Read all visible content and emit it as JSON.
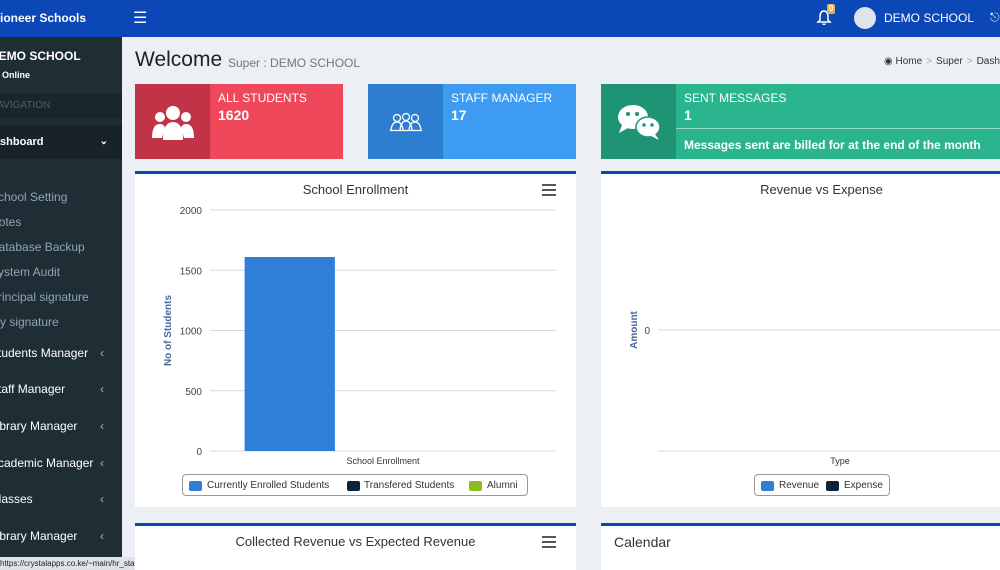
{
  "topbar": {
    "brand": "Pioneer Schools",
    "notification_count": "0",
    "user_name": "DEMO SCHOOL"
  },
  "sidebar": {
    "school_name": "DEMO SCHOOL",
    "status": "Online",
    "nav_header": "NAVIGATION",
    "active_item": "Dashboard",
    "sub_items": [
      "School Setting",
      "Notes",
      "Database Backup",
      "System Audit",
      "Principal signature",
      "My signature"
    ],
    "items": [
      "Students Manager",
      "Staff Manager",
      "Library Manager",
      "Academic Manager",
      "Classes",
      "Library Manager"
    ]
  },
  "status_bar": "https://crystalapps.co.ke/~main/hr_stafflist.php",
  "header": {
    "welcome": "Welcome",
    "sub": "Super : DEMO SCHOOL",
    "breadcrumb": [
      "Home",
      "Super",
      "Dashboard"
    ]
  },
  "boxes": [
    {
      "label": "ALL STUDENTS",
      "count": "1620",
      "color": "#f0485b",
      "icon_color": "#c13448"
    },
    {
      "label": "STAFF MANAGER",
      "count": "17",
      "color": "#3d9cf2",
      "icon_color": "#2d7ed0"
    },
    {
      "label": "SENT MESSAGES",
      "count": "1",
      "note": "Messages sent are billed for at the end of the month",
      "color": "#2bb58e",
      "icon_color": "#1e9474"
    }
  ],
  "panels": {
    "enrollment": {
      "title": "School Enrollment"
    },
    "revenue": {
      "title": "Revenue vs Expense"
    },
    "collected": {
      "title": "Collected Revenue vs Expected Revenue"
    },
    "calendar": {
      "title": "Calendar"
    }
  },
  "chart_data": [
    {
      "type": "bar",
      "title": "School Enrollment",
      "xlabel": "",
      "ylabel": "No of Students",
      "categories": [
        "School Enrollment"
      ],
      "yticks": [
        "0",
        "500",
        "1000",
        "1500",
        "2000"
      ],
      "ylim": [
        0,
        2000
      ],
      "series": [
        {
          "name": "Currently Enrolled Students",
          "values": [
            1610
          ],
          "color": "#2f7ed8"
        },
        {
          "name": "Transfered Students",
          "values": [
            0
          ],
          "color": "#0d233a"
        },
        {
          "name": "Alumni",
          "values": [
            0
          ],
          "color": "#8bbc21"
        }
      ],
      "legend": "bottom"
    },
    {
      "type": "bar",
      "title": "Revenue vs Expense",
      "xlabel": "Type",
      "ylabel": "Amount",
      "categories": [],
      "yticks": [
        "0"
      ],
      "series": [
        {
          "name": "Revenue",
          "values": [],
          "color": "#2f7ed8"
        },
        {
          "name": "Expense",
          "values": [],
          "color": "#0d233a"
        }
      ],
      "legend": "bottom"
    }
  ]
}
